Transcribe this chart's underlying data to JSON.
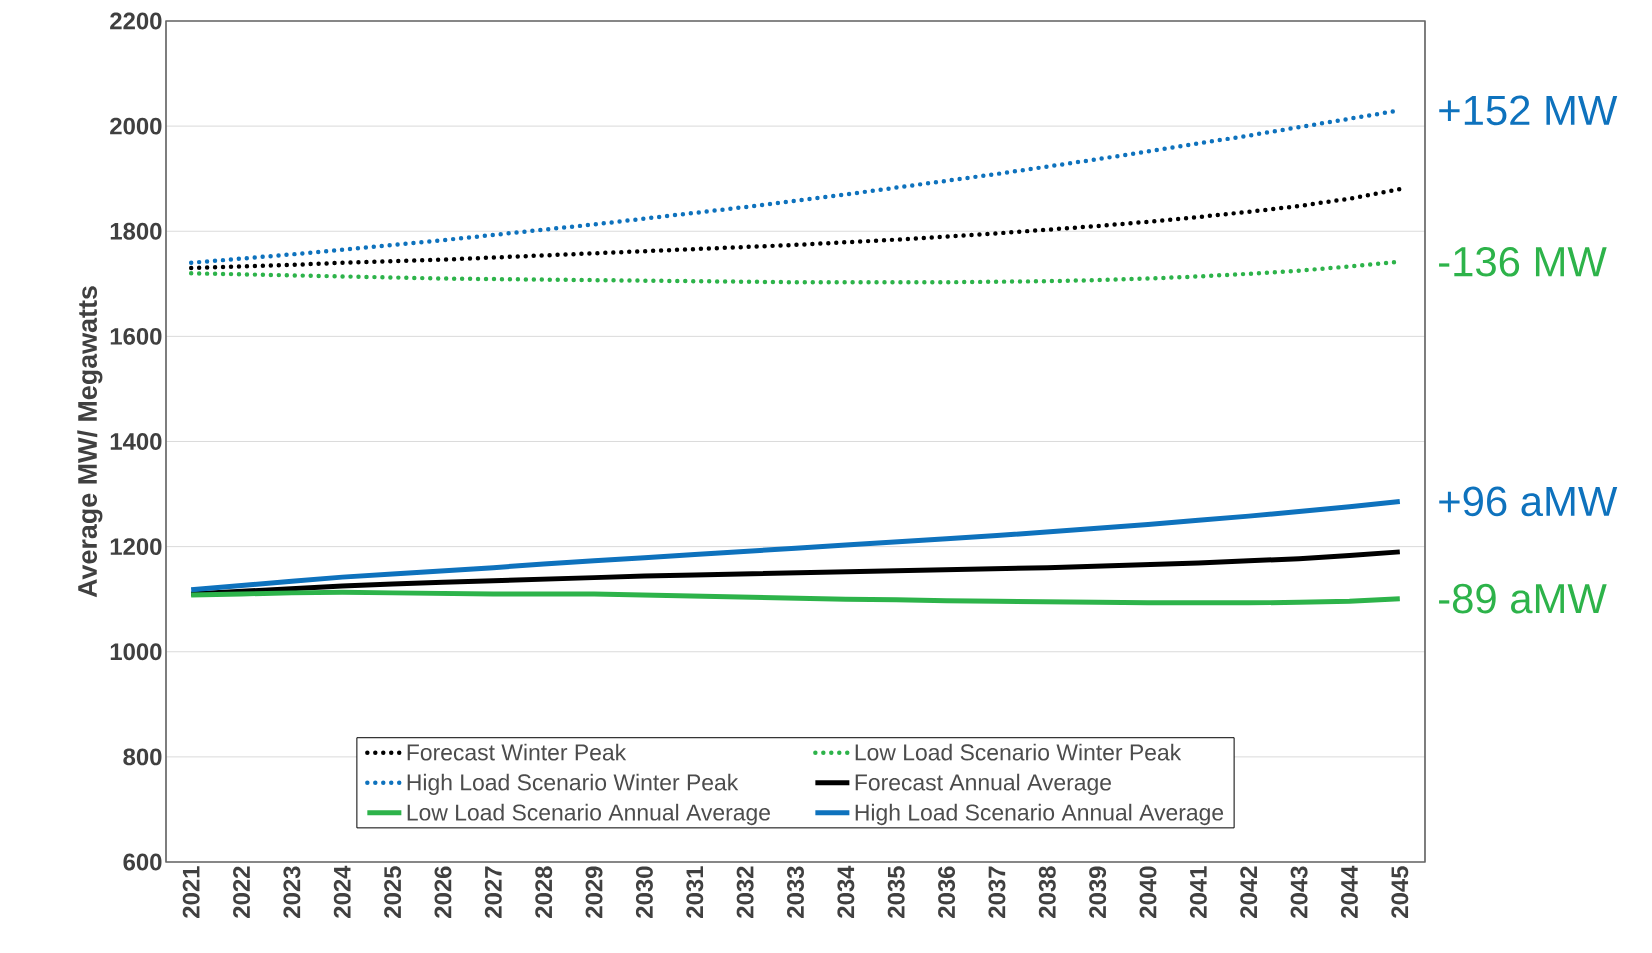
{
  "chart_data": {
    "type": "line",
    "ylabel": "Average MW/ Megawatts",
    "categories": [
      "2021",
      "2022",
      "2023",
      "2024",
      "2025",
      "2026",
      "2027",
      "2028",
      "2029",
      "2030",
      "2031",
      "2032",
      "2033",
      "2034",
      "2035",
      "2036",
      "2037",
      "2038",
      "2039",
      "2040",
      "2041",
      "2042",
      "2043",
      "2044",
      "2045"
    ],
    "ylim": [
      600,
      2200
    ],
    "yticks": [
      600,
      800,
      1000,
      1200,
      1400,
      1600,
      1800,
      2000,
      2200
    ],
    "grid": "y",
    "legend": "bottom",
    "marker": "none",
    "series": [
      {
        "name": "Forecast Winter Peak",
        "color": "#000000",
        "line_style": "dotted",
        "values": [
          1730,
          1733,
          1736,
          1740,
          1743,
          1746,
          1750,
          1754,
          1758,
          1762,
          1766,
          1770,
          1774,
          1779,
          1784,
          1790,
          1796,
          1803,
          1810,
          1818,
          1827,
          1837,
          1848,
          1862,
          1880
        ]
      },
      {
        "name": "Low Load Scenario Winter Peak",
        "color": "#2db34a",
        "line_style": "dotted",
        "values": [
          1720,
          1718,
          1716,
          1714,
          1712,
          1710,
          1709,
          1708,
          1707,
          1706,
          1705,
          1704,
          1703,
          1703,
          1703,
          1703,
          1704,
          1705,
          1707,
          1710,
          1714,
          1719,
          1725,
          1733,
          1742
        ]
      },
      {
        "name": "High Load Scenario Winter Peak",
        "color": "#0e72bd",
        "line_style": "dotted",
        "values": [
          1740,
          1748,
          1756,
          1765,
          1774,
          1783,
          1793,
          1803,
          1813,
          1824,
          1835,
          1846,
          1858,
          1870,
          1883,
          1896,
          1909,
          1923,
          1937,
          1952,
          1967,
          1982,
          1998,
          2014,
          2030
        ]
      },
      {
        "name": "Forecast Annual Average",
        "color": "#000000",
        "line_style": "solid",
        "values": [
          1110,
          1115,
          1120,
          1125,
          1129,
          1132,
          1135,
          1138,
          1141,
          1144,
          1146,
          1148,
          1150,
          1152,
          1154,
          1156,
          1158,
          1160,
          1163,
          1166,
          1169,
          1173,
          1177,
          1183,
          1190
        ]
      },
      {
        "name": "Low Load Scenario Annual Average",
        "color": "#2db34a",
        "line_style": "solid",
        "values": [
          1108,
          1110,
          1112,
          1113,
          1112,
          1111,
          1110,
          1110,
          1110,
          1108,
          1106,
          1104,
          1102,
          1100,
          1099,
          1097,
          1096,
          1095,
          1094,
          1093,
          1093,
          1093,
          1094,
          1096,
          1101
        ]
      },
      {
        "name": "High Load Scenario Annual Average",
        "color": "#0e72bd",
        "line_style": "solid",
        "values": [
          1118,
          1126,
          1134,
          1142,
          1148,
          1154,
          1160,
          1167,
          1173,
          1179,
          1185,
          1191,
          1197,
          1203,
          1209,
          1215,
          1221,
          1228,
          1235,
          1242,
          1250,
          1258,
          1267,
          1276,
          1286
        ]
      }
    ],
    "annotations": [
      {
        "text": "+152 MW",
        "x": "2045",
        "y": 2030
      },
      {
        "text": "-136 MW",
        "x": "2045",
        "y": 1742
      },
      {
        "text": "+96 aMW",
        "x": "2045",
        "y": 1286
      },
      {
        "text": "-89 aMW",
        "x": "2045",
        "y": 1101
      }
    ]
  }
}
